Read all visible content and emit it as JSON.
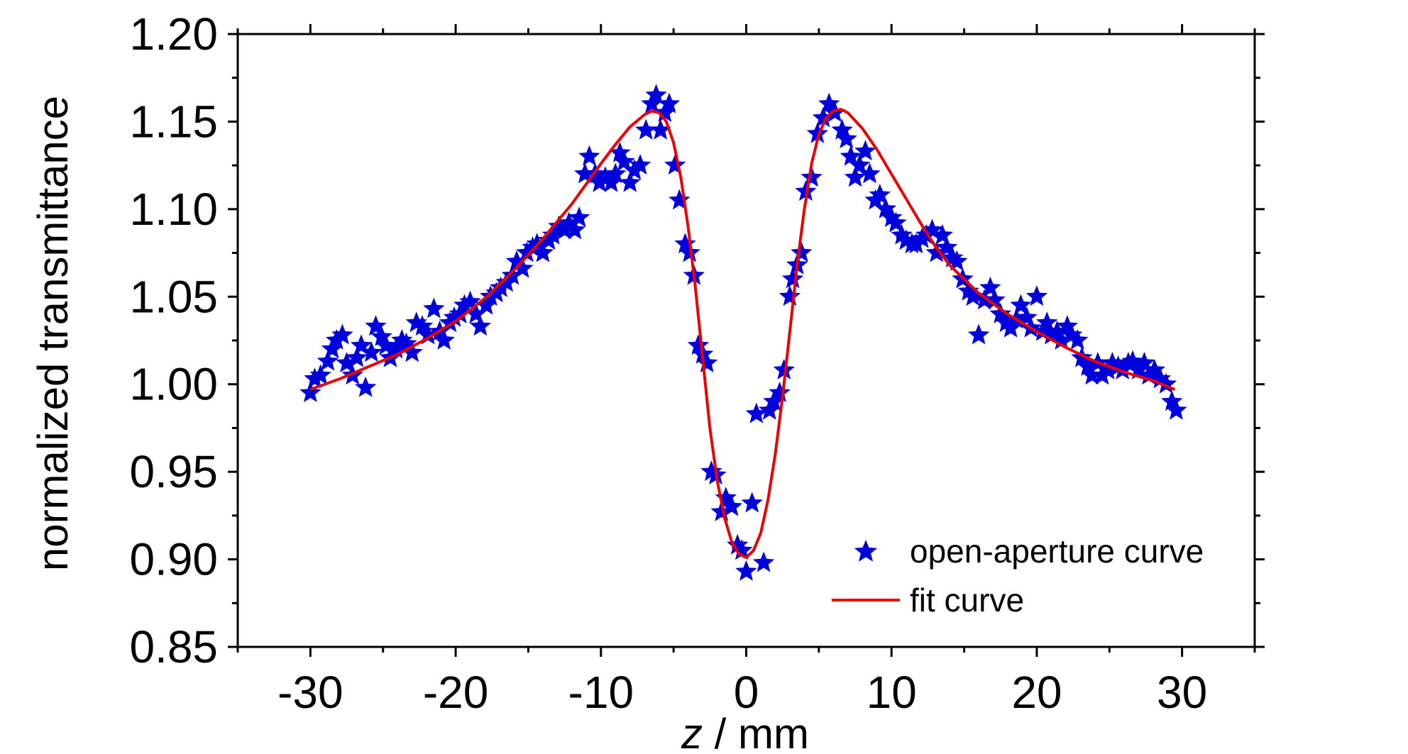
{
  "chart_data": {
    "type": "scatter",
    "title": "",
    "xlabel": {
      "italic": "z",
      "rest": " / mm"
    },
    "ylabel": "normalized transmittance",
    "xlim": [
      -35,
      35
    ],
    "ylim": [
      0.85,
      1.2
    ],
    "xticks": [
      -30,
      -20,
      -10,
      0,
      10,
      20,
      30
    ],
    "xtick_labels": [
      "-30",
      "-20",
      "-10",
      "0",
      "10",
      "20",
      "30"
    ],
    "yticks": [
      0.85,
      0.9,
      0.95,
      1.0,
      1.05,
      1.1,
      1.15,
      1.2
    ],
    "ytick_labels": [
      "0.85",
      "0.90",
      "0.95",
      "1.00",
      "1.05",
      "1.10",
      "1.15",
      "1.20"
    ],
    "grid": false,
    "legend_position": "bottom-right",
    "colors": {
      "scatter": "#0000dd",
      "fit": "#ee0000"
    },
    "series": [
      {
        "name": "open-aperture curve",
        "kind": "scatter",
        "marker": "star",
        "points": [
          [
            -30,
            0.995
          ],
          [
            -29.7,
            1.003
          ],
          [
            -29.3,
            1.005
          ],
          [
            -28.8,
            1.013
          ],
          [
            -28.5,
            1.02
          ],
          [
            -28.2,
            1.025
          ],
          [
            -27.8,
            1.028
          ],
          [
            -27.5,
            1.012
          ],
          [
            -27.1,
            1.005
          ],
          [
            -26.8,
            1.015
          ],
          [
            -26.5,
            1.022
          ],
          [
            -26.2,
            0.998
          ],
          [
            -25.8,
            1.018
          ],
          [
            -25.5,
            1.033
          ],
          [
            -25.1,
            1.027
          ],
          [
            -24.8,
            1.022
          ],
          [
            -24.5,
            1.015
          ],
          [
            -24.1,
            1.02
          ],
          [
            -23.7,
            1.025
          ],
          [
            -23.4,
            1.023
          ],
          [
            -23.0,
            1.018
          ],
          [
            -22.7,
            1.035
          ],
          [
            -22.3,
            1.033
          ],
          [
            -21.9,
            1.028
          ],
          [
            -21.5,
            1.043
          ],
          [
            -21.1,
            1.03
          ],
          [
            -20.8,
            1.025
          ],
          [
            -20.4,
            1.035
          ],
          [
            -20.1,
            1.038
          ],
          [
            -19.7,
            1.04
          ],
          [
            -19.4,
            1.045
          ],
          [
            -19.0,
            1.047
          ],
          [
            -18.6,
            1.04
          ],
          [
            -18.3,
            1.033
          ],
          [
            -17.9,
            1.045
          ],
          [
            -17.6,
            1.05
          ],
          [
            -17.2,
            1.052
          ],
          [
            -16.9,
            1.055
          ],
          [
            -16.5,
            1.058
          ],
          [
            -16.1,
            1.062
          ],
          [
            -15.8,
            1.07
          ],
          [
            -15.4,
            1.066
          ],
          [
            -15.1,
            1.075
          ],
          [
            -14.7,
            1.078
          ],
          [
            -14.4,
            1.08
          ],
          [
            -14.0,
            1.075
          ],
          [
            -13.6,
            1.082
          ],
          [
            -13.3,
            1.085
          ],
          [
            -12.9,
            1.09
          ],
          [
            -12.5,
            1.088
          ],
          [
            -12.2,
            1.092
          ],
          [
            -11.8,
            1.088
          ],
          [
            -11.5,
            1.095
          ],
          [
            -11.1,
            1.12
          ],
          [
            -10.8,
            1.13
          ],
          [
            -10.4,
            1.12
          ],
          [
            -10.1,
            1.115
          ],
          [
            -9.7,
            1.118
          ],
          [
            -9.3,
            1.115
          ],
          [
            -9.0,
            1.12
          ],
          [
            -8.7,
            1.132
          ],
          [
            -8.4,
            1.127
          ],
          [
            -8.0,
            1.115
          ],
          [
            -7.7,
            1.122
          ],
          [
            -7.3,
            1.125
          ],
          [
            -6.9,
            1.145
          ],
          [
            -6.5,
            1.16
          ],
          [
            -6.2,
            1.165
          ],
          [
            -5.9,
            1.145
          ],
          [
            -5.6,
            1.155
          ],
          [
            -5.3,
            1.16
          ],
          [
            -4.9,
            1.125
          ],
          [
            -4.6,
            1.105
          ],
          [
            -4.2,
            1.08
          ],
          [
            -3.9,
            1.075
          ],
          [
            -3.6,
            1.062
          ],
          [
            -3.3,
            1.022
          ],
          [
            -3.0,
            1.017
          ],
          [
            -2.7,
            1.012
          ],
          [
            -2.4,
            0.95
          ],
          [
            -2.1,
            0.948
          ],
          [
            -1.7,
            0.927
          ],
          [
            -1.4,
            0.935
          ],
          [
            -1.0,
            0.93
          ],
          [
            -0.6,
            0.908
          ],
          [
            -0.3,
            0.905
          ],
          [
            0.0,
            0.893
          ],
          [
            0.4,
            0.932
          ],
          [
            0.7,
            0.983
          ],
          [
            1.2,
            0.898
          ],
          [
            1.6,
            0.985
          ],
          [
            1.9,
            0.99
          ],
          [
            2.3,
            0.995
          ],
          [
            2.6,
            1.008
          ],
          [
            3.0,
            1.05
          ],
          [
            3.2,
            1.06
          ],
          [
            3.5,
            1.068
          ],
          [
            3.8,
            1.075
          ],
          [
            4.1,
            1.11
          ],
          [
            4.5,
            1.118
          ],
          [
            4.9,
            1.143
          ],
          [
            5.3,
            1.152
          ],
          [
            5.7,
            1.16
          ],
          [
            6.1,
            1.155
          ],
          [
            6.6,
            1.145
          ],
          [
            6.9,
            1.14
          ],
          [
            7.2,
            1.13
          ],
          [
            7.5,
            1.118
          ],
          [
            7.8,
            1.125
          ],
          [
            8.2,
            1.133
          ],
          [
            8.5,
            1.12
          ],
          [
            8.9,
            1.105
          ],
          [
            9.2,
            1.108
          ],
          [
            9.6,
            1.1
          ],
          [
            10.0,
            1.095
          ],
          [
            10.3,
            1.092
          ],
          [
            10.7,
            1.085
          ],
          [
            11.0,
            1.082
          ],
          [
            11.4,
            1.08
          ],
          [
            11.7,
            1.08
          ],
          [
            12.1,
            1.083
          ],
          [
            12.4,
            1.085
          ],
          [
            12.8,
            1.088
          ],
          [
            13.1,
            1.075
          ],
          [
            13.5,
            1.085
          ],
          [
            13.8,
            1.078
          ],
          [
            14.2,
            1.072
          ],
          [
            14.5,
            1.07
          ],
          [
            14.9,
            1.06
          ],
          [
            15.3,
            1.053
          ],
          [
            15.6,
            1.05
          ],
          [
            16.0,
            1.028
          ],
          [
            16.4,
            1.048
          ],
          [
            16.8,
            1.055
          ],
          [
            17.1,
            1.048
          ],
          [
            17.5,
            1.04
          ],
          [
            17.9,
            1.035
          ],
          [
            18.2,
            1.032
          ],
          [
            18.6,
            1.037
          ],
          [
            18.9,
            1.045
          ],
          [
            19.3,
            1.038
          ],
          [
            19.6,
            1.032
          ],
          [
            20.0,
            1.05
          ],
          [
            20.4,
            1.03
          ],
          [
            20.7,
            1.035
          ],
          [
            21.0,
            1.028
          ],
          [
            21.4,
            1.03
          ],
          [
            21.7,
            1.025
          ],
          [
            22.1,
            1.033
          ],
          [
            22.4,
            1.028
          ],
          [
            22.8,
            1.025
          ],
          [
            23.1,
            1.015
          ],
          [
            23.5,
            1.01
          ],
          [
            23.8,
            1.005
          ],
          [
            24.2,
            1.012
          ],
          [
            24.5,
            1.005
          ],
          [
            24.9,
            1.008
          ],
          [
            25.2,
            1.012
          ],
          [
            25.6,
            1.01
          ],
          [
            25.9,
            1.008
          ],
          [
            26.3,
            1.012
          ],
          [
            26.6,
            1.013
          ],
          [
            27.0,
            1.008
          ],
          [
            27.4,
            1.012
          ],
          [
            27.7,
            1.005
          ],
          [
            28.1,
            1.008
          ],
          [
            28.5,
            1.003
          ],
          [
            28.9,
            1.0
          ],
          [
            29.3,
            0.99
          ],
          [
            29.6,
            0.985
          ]
        ]
      },
      {
        "name": "fit curve",
        "kind": "line",
        "points": [
          [
            -30,
            0.997
          ],
          [
            -28,
            1.003
          ],
          [
            -26,
            1.01
          ],
          [
            -24,
            1.017
          ],
          [
            -22,
            1.026
          ],
          [
            -20,
            1.036
          ],
          [
            -18,
            1.049
          ],
          [
            -16,
            1.065
          ],
          [
            -14,
            1.083
          ],
          [
            -12,
            1.103
          ],
          [
            -10,
            1.126
          ],
          [
            -9,
            1.137
          ],
          [
            -8,
            1.147
          ],
          [
            -7,
            1.154
          ],
          [
            -6.5,
            1.156
          ],
          [
            -6,
            1.155
          ],
          [
            -5.5,
            1.15
          ],
          [
            -5,
            1.138
          ],
          [
            -4.5,
            1.118
          ],
          [
            -4,
            1.09
          ],
          [
            -3.5,
            1.055
          ],
          [
            -3,
            1.015
          ],
          [
            -2.5,
            0.975
          ],
          [
            -2,
            0.945
          ],
          [
            -1.5,
            0.924
          ],
          [
            -1,
            0.91
          ],
          [
            -0.5,
            0.903
          ],
          [
            0,
            0.901
          ],
          [
            0.5,
            0.905
          ],
          [
            1,
            0.915
          ],
          [
            1.5,
            0.934
          ],
          [
            2,
            0.96
          ],
          [
            2.5,
            0.993
          ],
          [
            3,
            1.03
          ],
          [
            3.5,
            1.068
          ],
          [
            4,
            1.1
          ],
          [
            4.5,
            1.126
          ],
          [
            5,
            1.143
          ],
          [
            5.5,
            1.152
          ],
          [
            6,
            1.156
          ],
          [
            6.5,
            1.157
          ],
          [
            7,
            1.155
          ],
          [
            8,
            1.146
          ],
          [
            9,
            1.134
          ],
          [
            10,
            1.12
          ],
          [
            11,
            1.106
          ],
          [
            12,
            1.092
          ],
          [
            13,
            1.079
          ],
          [
            14,
            1.068
          ],
          [
            16,
            1.052
          ],
          [
            18,
            1.04
          ],
          [
            20,
            1.03
          ],
          [
            22,
            1.021
          ],
          [
            24,
            1.013
          ],
          [
            26,
            1.007
          ],
          [
            28,
            1.002
          ],
          [
            29.5,
            0.997
          ]
        ]
      }
    ]
  }
}
